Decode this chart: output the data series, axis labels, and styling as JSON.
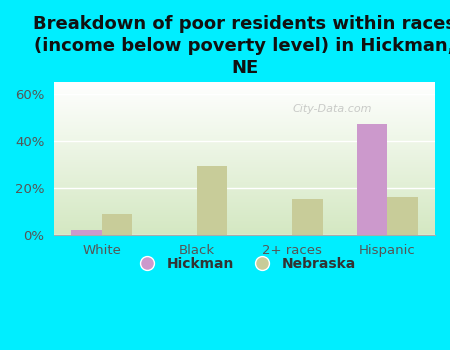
{
  "title": "Breakdown of poor residents within races\n(income below poverty level) in Hickman,\nNE",
  "categories": [
    "White",
    "Black",
    "2+ races",
    "Hispanic"
  ],
  "hickman_values": [
    2.0,
    0.0,
    0.0,
    47.0
  ],
  "nebraska_values": [
    9.0,
    29.0,
    15.0,
    16.0
  ],
  "hickman_color": "#cc99cc",
  "nebraska_color": "#c8cc99",
  "background_color": "#00eeff",
  "plot_bg_top": "#ffffff",
  "plot_bg_bottom": "#d4e8c2",
  "ylim": [
    0,
    65
  ],
  "yticks": [
    0,
    20,
    40,
    60
  ],
  "ytick_labels": [
    "0%",
    "20%",
    "40%",
    "60%"
  ],
  "bar_width": 0.32,
  "title_fontsize": 13,
  "tick_fontsize": 9.5,
  "legend_fontsize": 10,
  "grid_color": "#ffffff",
  "watermark": "City-Data.com",
  "title_color": "#111111"
}
